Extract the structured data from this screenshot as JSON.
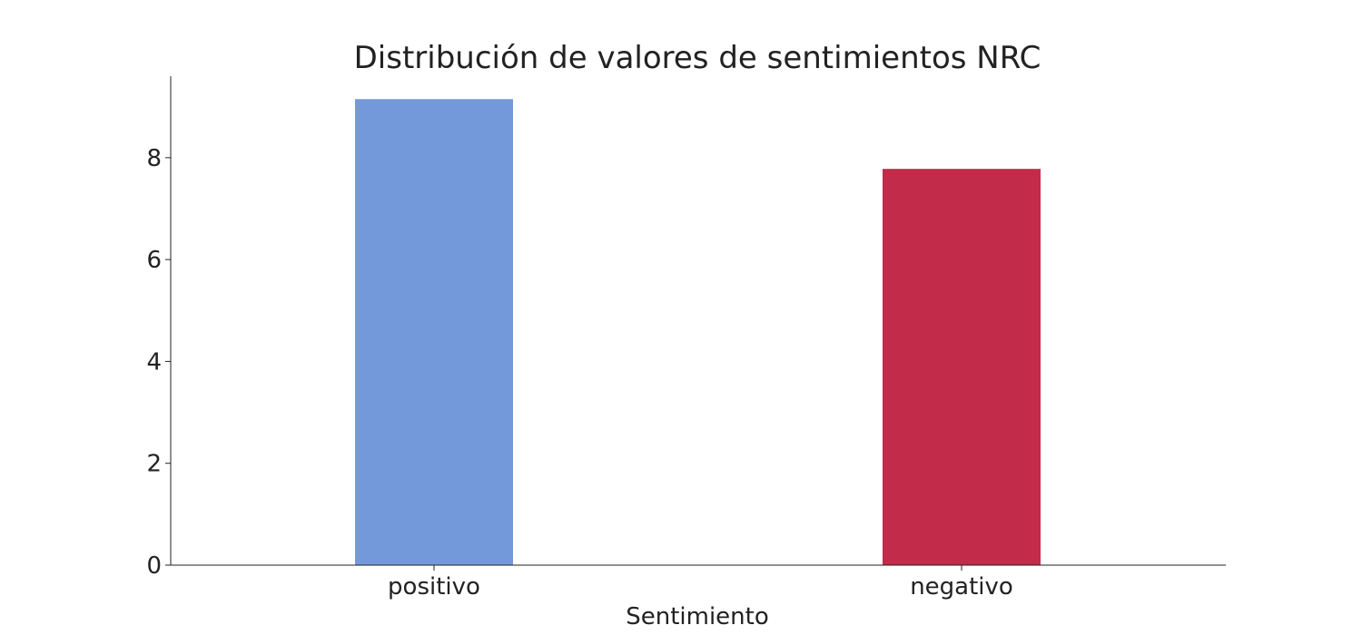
{
  "chart_data": {
    "type": "bar",
    "title": "Distribución de valores de sentimientos NRC",
    "xlabel": "Sentimiento",
    "ylabel": "",
    "categories": [
      "positivo",
      "negativo"
    ],
    "values": [
      9.15,
      7.78
    ],
    "colors": [
      "#7499da",
      "#c22b49"
    ],
    "ylim": [
      0,
      9.6
    ],
    "yticks": [
      0,
      2,
      4,
      6,
      8
    ],
    "ytick_labels": [
      "0",
      "2",
      "4",
      "6",
      "8"
    ],
    "grid": false,
    "legend": "none"
  }
}
